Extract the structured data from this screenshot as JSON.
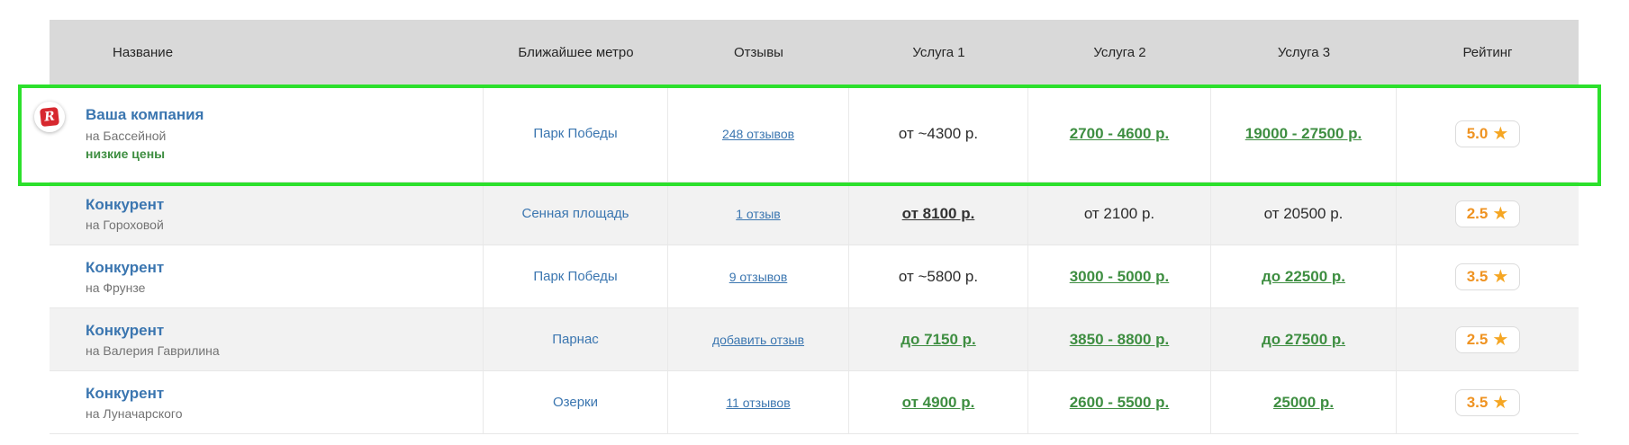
{
  "colors": {
    "link_blue": "#3b76b0",
    "price_green": "#3e8e41",
    "rating_orange": "#ef9322",
    "highlight_green": "#2ce02c",
    "header_bg": "#d9d9d9",
    "alt_row_bg": "#f2f2f2"
  },
  "icons": {
    "star": "★",
    "logo_letter": "R"
  },
  "table": {
    "headers": {
      "name": "Название",
      "metro": "Ближайшее метро",
      "reviews": "Отзывы",
      "service1": "Услуга 1",
      "service2": "Услуга 2",
      "service3": "Услуга 3",
      "rating": "Рейтинг"
    },
    "rows": [
      {
        "name": "Ваша компания",
        "address": "на Бассейной",
        "note": "низкие цены",
        "metro": "Парк Победы",
        "reviews": "248 отзывов",
        "s1": {
          "text": "от ~4300 р.",
          "style": "plain"
        },
        "s2": {
          "text": "2700 - 4600 р.",
          "style": "green"
        },
        "s3": {
          "text": "19000 - 27500 р.",
          "style": "green"
        },
        "rating": "5.0"
      },
      {
        "name": "Конкурент",
        "address": "на Гороховой",
        "metro": "Сенная площадь",
        "reviews": "1 отзыв",
        "s1": {
          "text": "от 8100 р.",
          "style": "dark"
        },
        "s2": {
          "text": "от 2100 р.",
          "style": "plain"
        },
        "s3": {
          "text": "от 20500 р.",
          "style": "plain"
        },
        "rating": "2.5"
      },
      {
        "name": "Конкурент",
        "address": "на Фрунзе",
        "metro": "Парк Победы",
        "reviews": "9 отзывов",
        "s1": {
          "text": "от ~5800 р.",
          "style": "plain"
        },
        "s2": {
          "text": "3000 - 5000 р.",
          "style": "green"
        },
        "s3": {
          "text": "до 22500 р.",
          "style": "green"
        },
        "rating": "3.5"
      },
      {
        "name": "Конкурент",
        "address": "на Валерия Гаврилина",
        "metro": "Парнас",
        "reviews": "добавить отзыв",
        "s1": {
          "text": "до 7150 р.",
          "style": "green"
        },
        "s2": {
          "text": "3850 - 8800 р.",
          "style": "green"
        },
        "s3": {
          "text": "до 27500 р.",
          "style": "green"
        },
        "rating": "2.5"
      },
      {
        "name": "Конкурент",
        "address": "на Луначарского",
        "metro": "Озерки",
        "reviews": "11 отзывов",
        "s1": {
          "text": "от 4900 р.",
          "style": "green"
        },
        "s2": {
          "text": "2600 - 5500 р.",
          "style": "green"
        },
        "s3": {
          "text": "25000 р.",
          "style": "green"
        },
        "rating": "3.5"
      }
    ]
  }
}
